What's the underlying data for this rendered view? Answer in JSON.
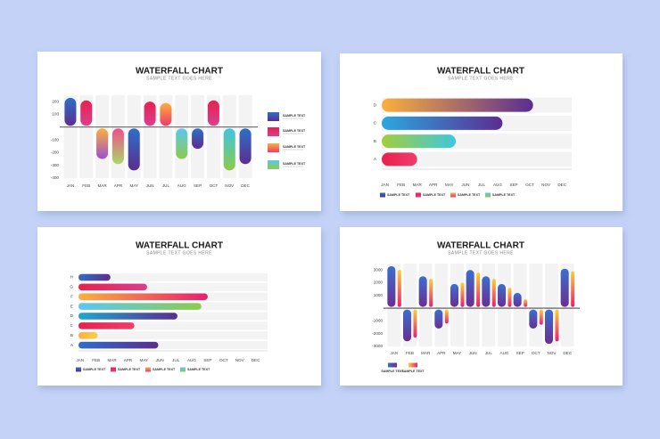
{
  "chart_data": [
    {
      "type": "bar",
      "title": "WATERFALL CHART",
      "subtitle": "SAMPLE TEXT GOES HERE",
      "categories": [
        "JAN",
        "FEB",
        "MAR",
        "APR",
        "MAY",
        "JUN",
        "JUL",
        "AUG",
        "SEP",
        "OCT",
        "NOV",
        "DEC"
      ],
      "ylim": [
        -400,
        250
      ],
      "yticks": [
        200,
        100,
        -100,
        -200,
        -300,
        -400
      ],
      "series": [
        {
          "values": [
            230,
            210,
            -250,
            -290,
            -340,
            200,
            190,
            -250,
            -170,
            210,
            -340,
            -290
          ],
          "colors": [
            [
              "#2e6fc7",
              "#5b2d90"
            ],
            [
              "#e8204f",
              "#d8408f"
            ],
            [
              "#fbb03b",
              "#9b4fd0"
            ],
            [
              "#ee4f8a",
              "#a8d86a"
            ],
            [
              "#2e6fc7",
              "#5b2d90"
            ],
            [
              "#e8204f",
              "#d8408f"
            ],
            [
              "#fbb03b",
              "#ee3a6b"
            ],
            [
              "#5bc8f0",
              "#8ccb4a"
            ],
            [
              "#2e6fc7",
              "#5b2d90"
            ],
            [
              "#e8204f",
              "#d8408f"
            ],
            [
              "#3ec6e0",
              "#8ccb4a"
            ],
            [
              "#2e6fc7",
              "#5b2d90"
            ]
          ]
        }
      ],
      "legend": [
        {
          "label": "SAMPLE TEXT",
          "color": [
            "#2e6fc7",
            "#5b2d90"
          ]
        },
        {
          "label": "SAMPLE TEXT",
          "color": [
            "#e8204f",
            "#d8408f"
          ]
        },
        {
          "label": "SAMPLE TEXT",
          "color": [
            "#fbb03b",
            "#ee3a6b"
          ]
        },
        {
          "label": "SAMPLE TEXT",
          "color": [
            "#5bc8f0",
            "#8ccb4a"
          ]
        }
      ]
    },
    {
      "type": "hbar",
      "title": "WATERFALL CHART",
      "subtitle": "SAMPLE TEXT GOES HERE",
      "categories": [
        "A",
        "B",
        "C",
        "D"
      ],
      "values": [
        3.0,
        5.4,
        8.3,
        10.2
      ],
      "colors": [
        [
          "#e8204f",
          "#ef3e6b"
        ],
        [
          "#a3cf3a",
          "#3ec6e0"
        ],
        [
          "#29a8e0",
          "#5b2d90"
        ],
        [
          "#fbb03b",
          "#5b2d90"
        ]
      ],
      "xlim": [
        0.8,
        12.6
      ],
      "xticks": [
        {
          "value": 1,
          "label": "JAN"
        },
        {
          "value": 2,
          "label": "FEB"
        },
        {
          "value": 3,
          "label": "MAR"
        },
        {
          "value": 4,
          "label": "APR"
        },
        {
          "value": 5,
          "label": "MAY"
        },
        {
          "value": 6,
          "label": "JUN"
        },
        {
          "value": 7,
          "label": "JUL"
        },
        {
          "value": 8,
          "label": "AUG"
        },
        {
          "value": 9,
          "label": "SEP"
        },
        {
          "value": 10,
          "label": "OCT"
        },
        {
          "value": 11,
          "label": "NOV"
        },
        {
          "value": 12,
          "label": "DEC"
        }
      ],
      "legend": [
        {
          "label": "SAMPLE TEXT",
          "color": [
            "#2e6fc7",
            "#5b2d90"
          ]
        },
        {
          "label": "SAMPLE TEXT",
          "color": [
            "#e8204f",
            "#d8408f"
          ]
        },
        {
          "label": "SAMPLE TEXT",
          "color": [
            "#fbb03b",
            "#ee3a6b"
          ]
        },
        {
          "label": "SAMPLE TEXT",
          "color": [
            "#5bc8f0",
            "#8ccb4a"
          ]
        }
      ]
    },
    {
      "type": "hbar",
      "title": "WATERFALL CHART",
      "subtitle": "SAMPLE TEXT GOES HERE",
      "categories": [
        "A",
        "B",
        "C",
        "D",
        "E",
        "F",
        "G",
        "H"
      ],
      "values": [
        5.9,
        2.1,
        4.4,
        7.1,
        8.6,
        9.0,
        5.2,
        2.9
      ],
      "colors": [
        [
          "#2e6fc7",
          "#5b2d90"
        ],
        [
          "#fbb03b",
          "#f6d04a"
        ],
        [
          "#e8204f",
          "#ef3e6b"
        ],
        [
          "#1fa8c9",
          "#5b2d90"
        ],
        [
          "#5bc8f0",
          "#8ccb4a"
        ],
        [
          "#fbb03b",
          "#e8206f"
        ],
        [
          "#e8204f",
          "#d8408f"
        ],
        [
          "#2e6fc7",
          "#5b2d90"
        ]
      ],
      "xlim": [
        0.9,
        12.75
      ],
      "xticks": [
        {
          "value": 1,
          "label": "JAN"
        },
        {
          "value": 2,
          "label": "FEB"
        },
        {
          "value": 3,
          "label": "MAR"
        },
        {
          "value": 4,
          "label": "APR"
        },
        {
          "value": 5,
          "label": "MAY"
        },
        {
          "value": 6,
          "label": "JUN"
        },
        {
          "value": 7,
          "label": "JUL"
        },
        {
          "value": 8,
          "label": "AUG"
        },
        {
          "value": 9,
          "label": "SEP"
        },
        {
          "value": 10,
          "label": "OCT"
        },
        {
          "value": 11,
          "label": "NOV"
        },
        {
          "value": 12,
          "label": "DEC"
        }
      ],
      "legend": [
        {
          "label": "SAMPLE TEXT",
          "color": [
            "#2e6fc7",
            "#5b2d90"
          ]
        },
        {
          "label": "SAMPLE TEXT",
          "color": [
            "#e8204f",
            "#d8408f"
          ]
        },
        {
          "label": "SAMPLE TEXT",
          "color": [
            "#fbb03b",
            "#ee3a6b"
          ]
        },
        {
          "label": "SAMPLE TEXT",
          "color": [
            "#5bc8f0",
            "#8ccb4a"
          ]
        }
      ]
    },
    {
      "type": "bar",
      "title": "WATERFALL CHART",
      "subtitle": "SAMPLE TEXT GOES HERE",
      "categories": [
        "JAN",
        "FEB",
        "MAR",
        "APR",
        "MAY",
        "JUN",
        "JUL",
        "AUG",
        "SEP",
        "OCT",
        "NOV",
        "DEC"
      ],
      "ylim": [
        -3000,
        3500
      ],
      "yticks": [
        3000,
        2000,
        1000,
        -1000,
        -2000,
        -3000
      ],
      "series": [
        {
          "color": [
            "#3a6fd0",
            "#6a2e90"
          ],
          "values": [
            3300,
            -2600,
            2500,
            -1600,
            1900,
            3000,
            2500,
            1900,
            1200,
            -1600,
            -2800,
            3100
          ]
        },
        {
          "color": [
            "#fbd03b",
            "#e8206f"
          ],
          "values": [
            3000,
            -2300,
            2300,
            -1200,
            2000,
            2800,
            2300,
            1600,
            700,
            -1300,
            -2600,
            2900
          ]
        }
      ],
      "legend": [
        {
          "label": "SAMPLE TEXT",
          "color": [
            "#3a6fd0",
            "#6a2e90"
          ]
        },
        {
          "label": "SAMPLE TEXT",
          "color": [
            "#fbd03b",
            "#e8206f"
          ]
        }
      ]
    }
  ]
}
